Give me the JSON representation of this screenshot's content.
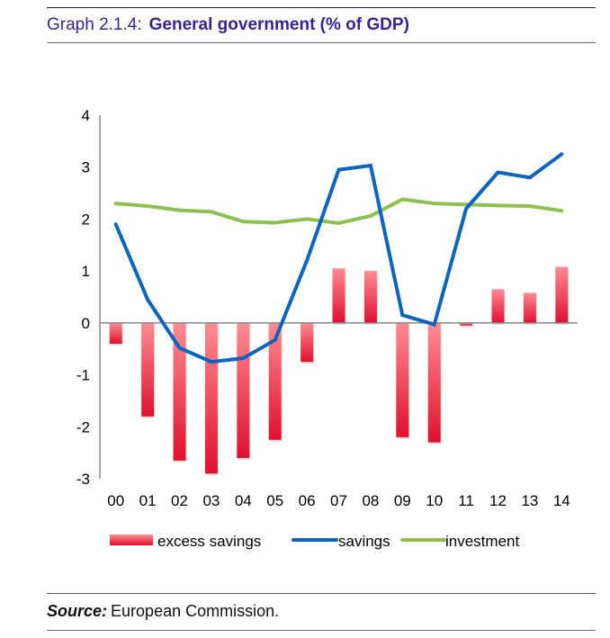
{
  "header": {
    "label": "Graph 2.1.4:",
    "title": "General government (% of GDP)"
  },
  "footer": {
    "source_label": "Source:",
    "source_text": "European Commission."
  },
  "chart_data": {
    "type": "bar",
    "title": "General government (% of GDP)",
    "xlabel": "",
    "ylabel": "",
    "ylim": [
      -3,
      4
    ],
    "yticks": [
      4,
      3,
      2,
      1,
      0,
      -1,
      -2,
      -3
    ],
    "grid": false,
    "legend_position": "bottom",
    "categories": [
      "00",
      "01",
      "02",
      "03",
      "04",
      "05",
      "06",
      "07",
      "08",
      "09",
      "10",
      "11",
      "12",
      "13",
      "14"
    ],
    "series": [
      {
        "name": "excess savings",
        "type": "bar",
        "color": "#e0102e",
        "values": [
          -0.4,
          -1.8,
          -2.65,
          -2.9,
          -2.6,
          -2.25,
          -0.75,
          1.05,
          1.0,
          -2.2,
          -2.3,
          -0.05,
          0.65,
          0.58,
          1.08
        ]
      },
      {
        "name": "savings",
        "type": "line",
        "color": "#0a64c0",
        "values": [
          1.9,
          0.45,
          -0.48,
          -0.75,
          -0.68,
          -0.33,
          1.2,
          2.95,
          3.03,
          0.15,
          -0.03,
          2.2,
          2.9,
          2.8,
          3.25
        ]
      },
      {
        "name": "investment",
        "type": "line",
        "color": "#8cc152",
        "values": [
          2.3,
          2.25,
          2.17,
          2.14,
          1.95,
          1.93,
          2.0,
          1.92,
          2.06,
          2.38,
          2.3,
          2.28,
          2.26,
          2.25,
          2.16
        ]
      }
    ]
  }
}
